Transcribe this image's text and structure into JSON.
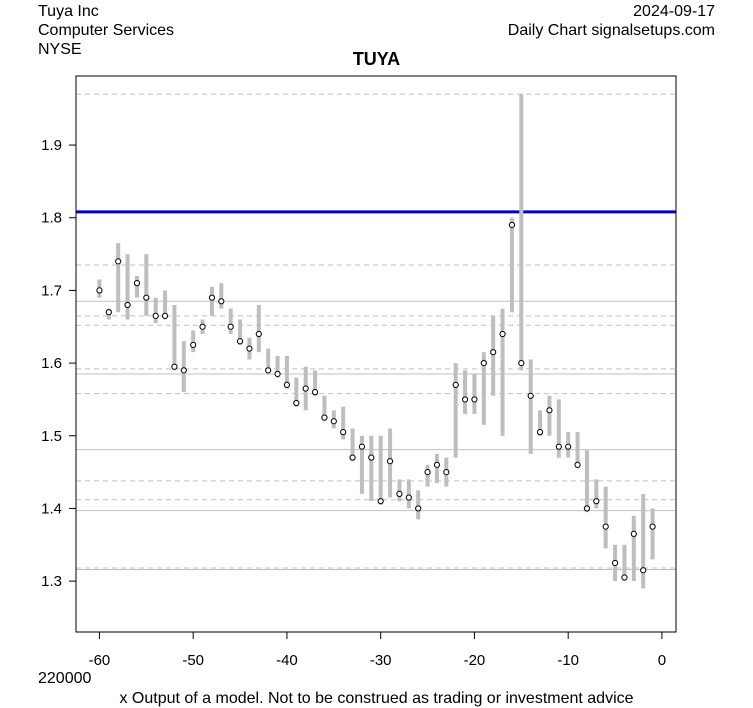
{
  "header": {
    "company": "Tuya Inc",
    "sector": "Computer Services",
    "exchange": "NYSE",
    "date": "2024-09-17",
    "source": "Daily Chart signalsetups.com"
  },
  "footer": {
    "volume_label": "220000",
    "disclaimer": "x Output of a model. Not to be construed as trading or investment advice"
  },
  "chart_data": {
    "type": "scatter",
    "title": "TUYA",
    "xlabel": "",
    "ylabel": "",
    "xlim": [
      -62.5,
      1.5
    ],
    "ylim": [
      1.23,
      1.995
    ],
    "x_ticks": [
      -60,
      -50,
      -40,
      -30,
      -20,
      -10,
      0
    ],
    "y_ticks": [
      1.3,
      1.4,
      1.5,
      1.6,
      1.7,
      1.8,
      1.9
    ],
    "grid": false,
    "colors": {
      "range_bar": "#bebebe",
      "close_point": "#000000",
      "highlight_line": "#0000cc",
      "solid_level": "#c0c0c0",
      "dashed_level": "#c0c0c0"
    },
    "highlight_level": 1.808,
    "solid_levels": [
      1.685,
      1.585,
      1.481,
      1.397,
      1.316
    ],
    "dashed_levels": [
      1.97,
      1.735,
      1.665,
      1.652,
      1.592,
      1.558,
      1.438,
      1.412,
      1.318
    ],
    "series": [
      {
        "x": [
          -60,
          -59,
          -58,
          -57,
          -56,
          -55,
          -54,
          -53,
          -52,
          -51,
          -50,
          -49,
          -48,
          -47,
          -46,
          -45,
          -44,
          -43,
          -42,
          -41,
          -40,
          -39,
          -38,
          -37,
          -36,
          -35,
          -34,
          -33,
          -32,
          -31,
          -30,
          -29,
          -28,
          -27,
          -26,
          -25,
          -24,
          -23,
          -22,
          -21,
          -20,
          -19,
          -18,
          -17,
          -16,
          -15,
          -14,
          -13,
          -12,
          -11,
          -10,
          -9,
          -8,
          -7,
          -6,
          -5,
          -4,
          -3,
          -2,
          -1
        ],
        "close": [
          1.7,
          1.67,
          1.74,
          1.68,
          1.71,
          1.69,
          1.665,
          1.665,
          1.595,
          1.59,
          1.625,
          1.65,
          1.69,
          1.685,
          1.65,
          1.63,
          1.62,
          1.64,
          1.59,
          1.585,
          1.57,
          1.545,
          1.565,
          1.56,
          1.525,
          1.52,
          1.505,
          1.47,
          1.485,
          1.47,
          1.41,
          1.465,
          1.42,
          1.415,
          1.4,
          1.45,
          1.46,
          1.45,
          1.57,
          1.55,
          1.55,
          1.6,
          1.615,
          1.64,
          1.79,
          1.6,
          1.555,
          1.505,
          1.535,
          1.485,
          1.485,
          1.46,
          1.4,
          1.41,
          1.375,
          1.325,
          1.305,
          1.365,
          1.315,
          1.375
        ],
        "high": [
          1.715,
          1.675,
          1.765,
          1.75,
          1.72,
          1.75,
          1.69,
          1.7,
          1.68,
          1.63,
          1.645,
          1.66,
          1.705,
          1.71,
          1.675,
          1.66,
          1.635,
          1.68,
          1.62,
          1.61,
          1.61,
          1.58,
          1.595,
          1.59,
          1.555,
          1.535,
          1.54,
          1.51,
          1.5,
          1.5,
          1.5,
          1.51,
          1.44,
          1.44,
          1.425,
          1.46,
          1.475,
          1.47,
          1.6,
          1.59,
          1.585,
          1.615,
          1.665,
          1.675,
          1.8,
          1.97,
          1.605,
          1.535,
          1.555,
          1.55,
          1.505,
          1.505,
          1.48,
          1.44,
          1.43,
          1.35,
          1.35,
          1.39,
          1.42,
          1.4
        ],
        "low": [
          1.69,
          1.66,
          1.67,
          1.66,
          1.69,
          1.665,
          1.655,
          1.66,
          1.59,
          1.56,
          1.615,
          1.64,
          1.665,
          1.675,
          1.64,
          1.625,
          1.605,
          1.615,
          1.585,
          1.58,
          1.565,
          1.54,
          1.535,
          1.555,
          1.52,
          1.51,
          1.495,
          1.465,
          1.42,
          1.41,
          1.405,
          1.415,
          1.41,
          1.4,
          1.385,
          1.43,
          1.435,
          1.43,
          1.47,
          1.53,
          1.53,
          1.515,
          1.555,
          1.5,
          1.67,
          1.59,
          1.475,
          1.5,
          1.5,
          1.47,
          1.47,
          1.455,
          1.395,
          1.4,
          1.345,
          1.3,
          1.3,
          1.3,
          1.29,
          1.33
        ]
      }
    ]
  }
}
